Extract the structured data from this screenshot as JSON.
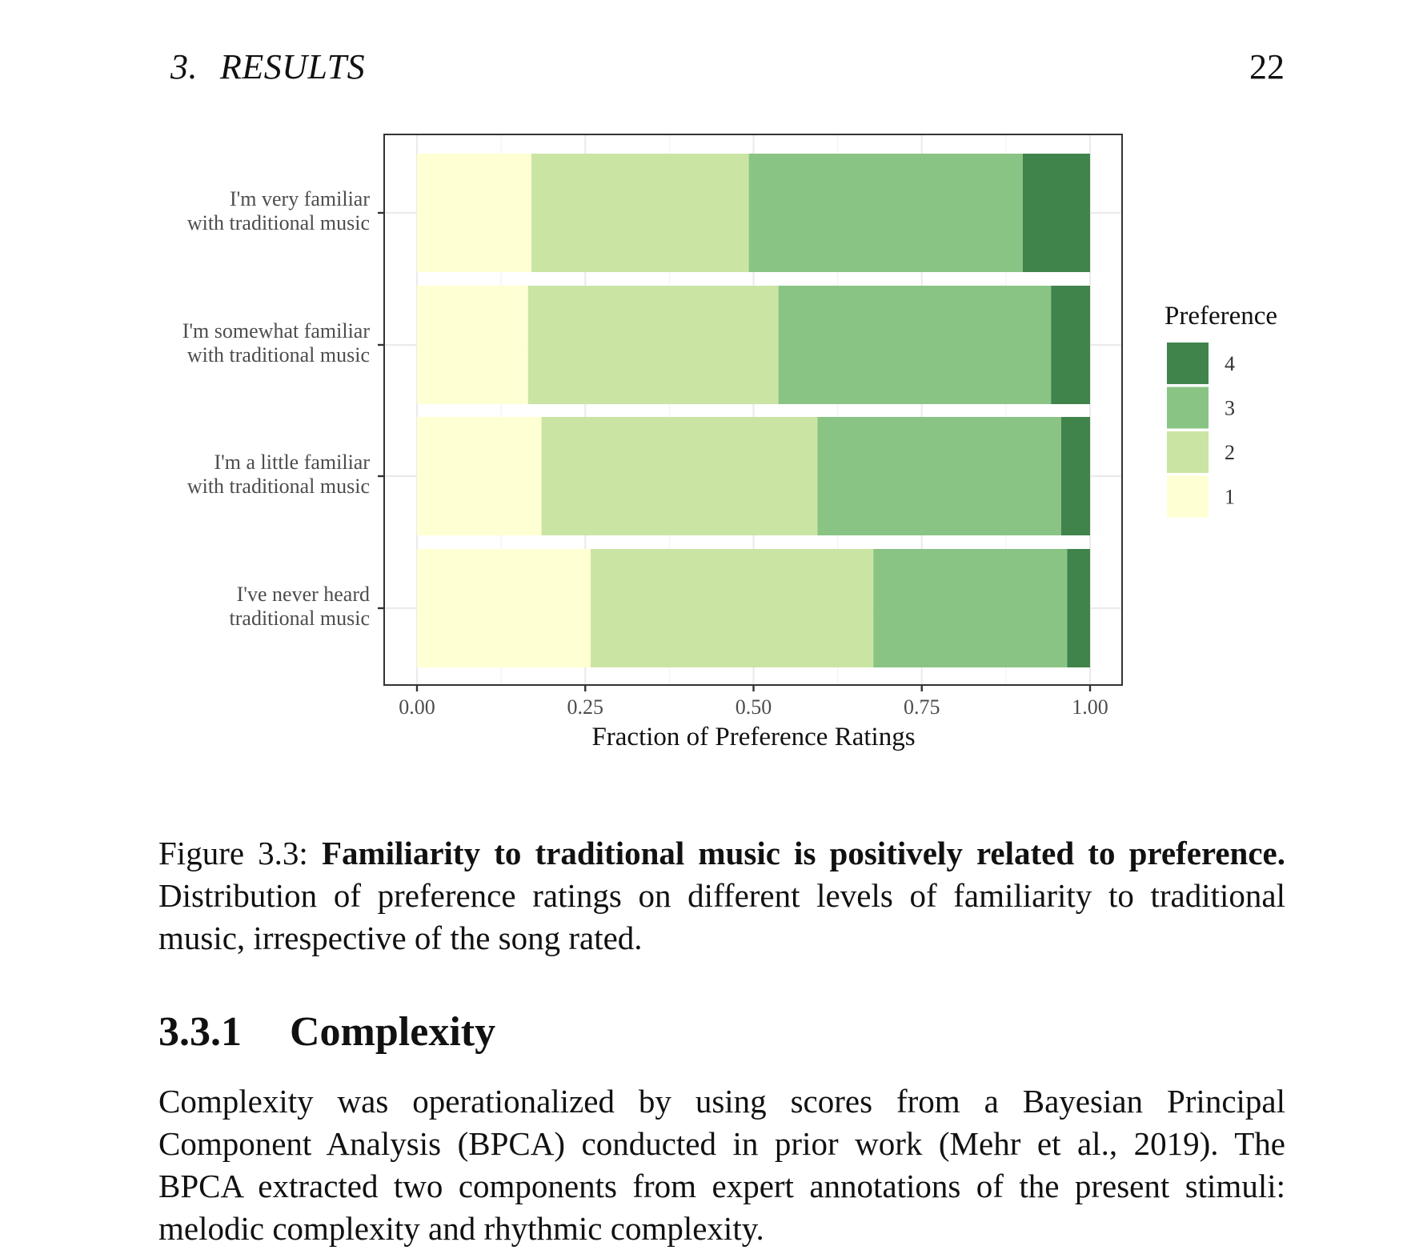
{
  "header": {
    "chapter_number": "3.",
    "chapter_title": "RESULTS",
    "page_number": "22"
  },
  "chart_data": {
    "type": "bar",
    "orientation": "horizontal",
    "stacked": true,
    "categories": [
      [
        "I'm very familiar",
        "with traditional music"
      ],
      [
        "I'm somewhat familiar",
        "with traditional music"
      ],
      [
        "I'm a little familiar",
        "with traditional music"
      ],
      [
        "I've never heard",
        "traditional music"
      ]
    ],
    "series": [
      {
        "name": "1",
        "color": "#ffffd4",
        "values": [
          0.17,
          0.165,
          0.185,
          0.258
        ]
      },
      {
        "name": "2",
        "color": "#cae5a3",
        "values": [
          0.323,
          0.372,
          0.41,
          0.42
        ]
      },
      {
        "name": "3",
        "color": "#89c484",
        "values": [
          0.407,
          0.405,
          0.362,
          0.288
        ]
      },
      {
        "name": "4",
        "color": "#41844b",
        "values": [
          0.1,
          0.058,
          0.043,
          0.034
        ]
      }
    ],
    "xlabel": "Fraction of Preference Ratings",
    "xlim": [
      0,
      1
    ],
    "xticks": [
      "0.00",
      "0.25",
      "0.50",
      "0.75",
      "1.00"
    ],
    "legend_title": "Preference",
    "legend_order": [
      "4",
      "3",
      "2",
      "1"
    ],
    "legend_position": "right",
    "grid": true
  },
  "caption": {
    "label": "Figure 3.3:",
    "bold": "Familiarity to traditional music is positively related to preference.",
    "text": "Distribution of preference ratings on different levels of familiarity to traditional music, irrespective of the song rated."
  },
  "section": {
    "number": "3.3.1",
    "title": "Complexity"
  },
  "paragraph": "Complexity was operationalized by using scores from a Bayesian Principal Component Analysis (BPCA) conducted in prior work (Mehr et al., 2019). The BPCA extracted two components from expert annotations of the present stimuli: melodic complexity and rhythmic complexity."
}
